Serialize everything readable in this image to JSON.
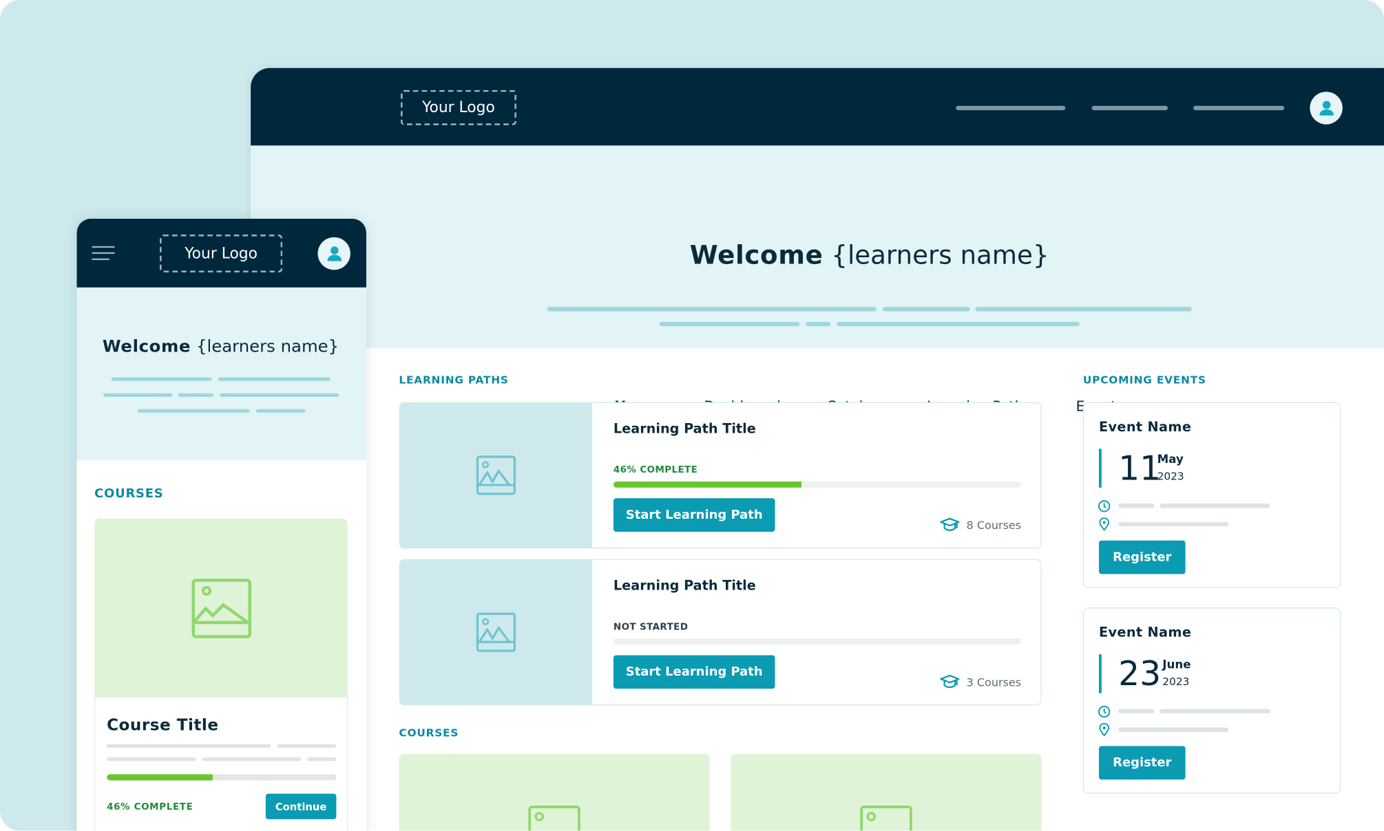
{
  "colors": {
    "brand_dark": "#00283d",
    "accent": "#0b9bb3",
    "progress": "#67c72e",
    "hero_bg": "#e3f4f6",
    "course_image_bg": "#dff3d6"
  },
  "desktop": {
    "logo": "Your Logo",
    "avatar_icon": "user-icon",
    "welcome_bold": "Welcome",
    "welcome_name": "{learners name}",
    "tabs": [
      {
        "label": "Home",
        "active": true
      },
      {
        "label": "Dashboard"
      },
      {
        "label": "Catalog"
      },
      {
        "label": "Learning Paths"
      },
      {
        "label": "Events"
      }
    ],
    "learning_paths_heading": "LEARNING PATHS",
    "learning_paths": [
      {
        "title": "Learning Path Title",
        "status": "46% COMPLETE",
        "progress_percent": 46,
        "button": "Start Learning Path",
        "courses": "8 Courses"
      },
      {
        "title": "Learning Path Title",
        "status": "NOT STARTED",
        "progress_percent": 0,
        "button": "Start Learning Path",
        "courses": "3 Courses"
      }
    ],
    "courses_heading": "COURSES",
    "events_heading": "UPCOMING EVENTS",
    "events": [
      {
        "name": "Event Name",
        "day": "11",
        "month": "May",
        "year": "2023",
        "button": "Register"
      },
      {
        "name": "Event Name",
        "day": "23",
        "month": "June",
        "year": "2023",
        "button": "Register"
      }
    ]
  },
  "mobile": {
    "menu_icon": "hamburger-icon",
    "logo": "Your Logo",
    "welcome_bold": "Welcome",
    "welcome_name": "{learners name}",
    "courses_heading": "COURSES",
    "course": {
      "title": "Course Title",
      "status": "46% COMPLETE",
      "progress_percent": 46,
      "button": "Continue"
    }
  }
}
